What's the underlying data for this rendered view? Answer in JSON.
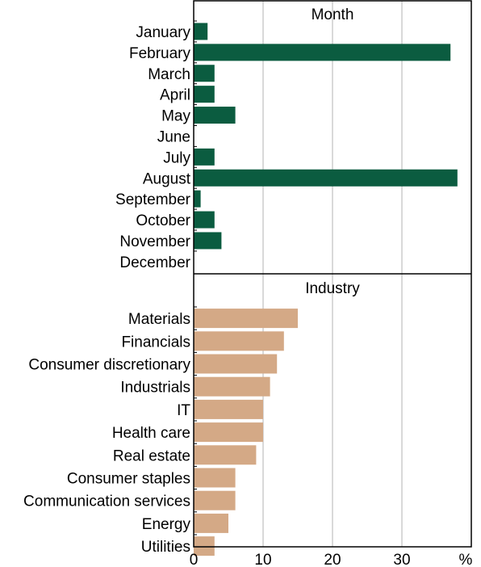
{
  "chart_data": [
    {
      "type": "bar",
      "orientation": "horizontal",
      "title": "Month",
      "categories": [
        "January",
        "February",
        "March",
        "April",
        "May",
        "June",
        "July",
        "August",
        "September",
        "October",
        "November",
        "December"
      ],
      "values": [
        2,
        37,
        3,
        3,
        6,
        0,
        3,
        38,
        1,
        3,
        4,
        0
      ],
      "color": "#0b5c40",
      "xlim": [
        0,
        40
      ],
      "grid": true
    },
    {
      "type": "bar",
      "orientation": "horizontal",
      "title": "Industry",
      "categories": [
        "Materials",
        "Financials",
        "Consumer discretionary",
        "Industrials",
        "IT",
        "Health care",
        "Real estate",
        "Consumer staples",
        "Communication services",
        "Energy",
        "Utilities"
      ],
      "values": [
        15,
        13,
        12,
        11,
        10,
        10,
        9,
        6,
        6,
        5,
        3
      ],
      "color": "#d4a986",
      "xlim": [
        0,
        40
      ],
      "grid": true
    }
  ],
  "x_axis": {
    "ticks": [
      0,
      10,
      20,
      30
    ],
    "unit": "%"
  }
}
